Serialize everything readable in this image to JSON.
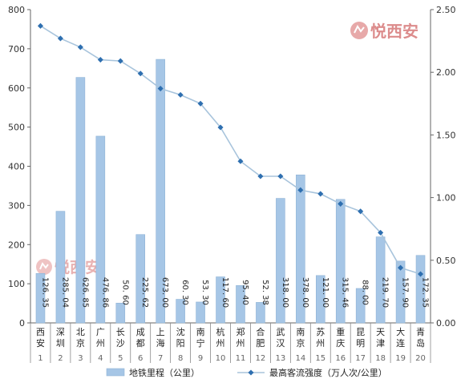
{
  "watermark": "悦西安",
  "chart_data": {
    "type": "bar",
    "categories": [
      "西安",
      "深圳",
      "北京",
      "广州",
      "长沙",
      "成都",
      "上海",
      "沈阳",
      "南宁",
      "杭州",
      "郑州",
      "合肥",
      "武汉",
      "南京",
      "苏州",
      "重庆",
      "昆明",
      "天津",
      "大连",
      "青岛"
    ],
    "ranks": [
      "1",
      "2",
      "3",
      "4",
      "5",
      "6",
      "7",
      "8",
      "9",
      "10",
      "11",
      "12",
      "13",
      "14",
      "15",
      "16",
      "17",
      "18",
      "19",
      "20"
    ],
    "series": [
      {
        "name": "地铁里程（公里）",
        "type": "bar",
        "axis": "left",
        "values": [
          126.35,
          285.04,
          626.85,
          476.86,
          50.6,
          225.62,
          673.0,
          60.3,
          53.3,
          117.6,
          95.4,
          52.38,
          318.0,
          378.0,
          121.0,
          315.46,
          88.0,
          219.7,
          157.9,
          172.35
        ],
        "labels": [
          "126. 35",
          "285. 04",
          "626. 85",
          "476. 86",
          "50. 60",
          "225. 62",
          "673. 00",
          "60. 30",
          "53. 30",
          "117. 60",
          "95. 40",
          "52. 38",
          "318. 00",
          "378. 00",
          "121. 00",
          "315. 46",
          "88. 00",
          "219. 70",
          "157. 90",
          "172. 35"
        ],
        "color": "#a6c6e6"
      },
      {
        "name": "最高客流强度（万人次/公里）",
        "type": "line",
        "axis": "right",
        "values": [
          2.37,
          2.27,
          2.2,
          2.1,
          2.09,
          1.99,
          1.87,
          1.82,
          1.75,
          1.56,
          1.29,
          1.17,
          1.17,
          1.06,
          1.03,
          0.95,
          0.89,
          0.72,
          0.44,
          0.39
        ],
        "color": "#a8c4dc",
        "marker_color": "#2e6fb0"
      }
    ],
    "y_left": {
      "min": 0,
      "max": 800,
      "ticks": [
        "0",
        "100",
        "200",
        "300",
        "400",
        "500",
        "600",
        "700",
        "800"
      ]
    },
    "y_right": {
      "min": 0,
      "max": 2.5,
      "ticks": [
        "0.00",
        "0.50",
        "1.00",
        "1.50",
        "2.00",
        "2.50"
      ]
    },
    "grid": false,
    "legend": {
      "placement": "bottom",
      "items": [
        "地铁里程（公里）",
        "最高客流强度（万人次/公里）"
      ]
    }
  }
}
